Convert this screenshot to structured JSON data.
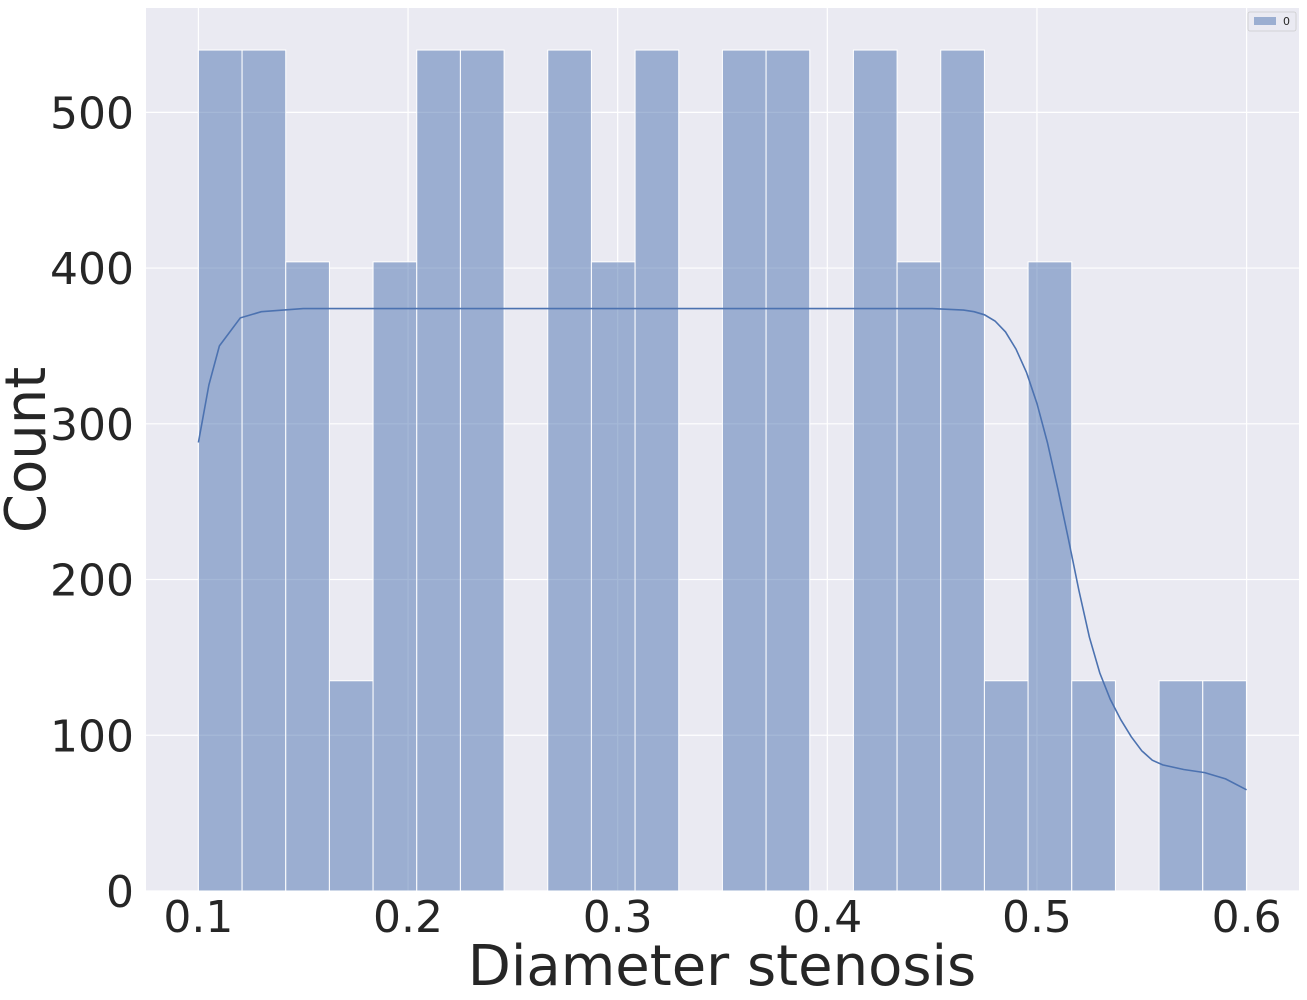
{
  "chart_data": {
    "type": "bar",
    "subtype": "histogram_with_kde",
    "xlabel": "Diameter stenosis",
    "ylabel": "Count",
    "xlim": [
      0.075,
      0.625
    ],
    "ylim": [
      0,
      567
    ],
    "xticks": [
      0.1,
      0.2,
      0.3,
      0.4,
      0.5,
      0.6
    ],
    "xtick_labels": [
      "0.1",
      "0.2",
      "0.3",
      "0.4",
      "0.5",
      "0.6"
    ],
    "yticks": [
      0,
      100,
      200,
      300,
      400,
      500
    ],
    "ytick_labels": [
      "0",
      "100",
      "200",
      "300",
      "400",
      "500"
    ],
    "grid": true,
    "legend": {
      "position": "top-right",
      "entries": [
        "0"
      ]
    },
    "bins": {
      "start": 0.1,
      "width": 0.02083,
      "counts": [
        540,
        540,
        404,
        135,
        404,
        540,
        540,
        0,
        540,
        404,
        540,
        0,
        540,
        540,
        0,
        540,
        404,
        540,
        135,
        404,
        135,
        0,
        135,
        135
      ]
    },
    "kde": {
      "x": [
        0.1,
        0.105,
        0.11,
        0.12,
        0.13,
        0.15,
        0.2,
        0.3,
        0.4,
        0.45,
        0.465,
        0.47,
        0.475,
        0.48,
        0.485,
        0.49,
        0.495,
        0.5,
        0.505,
        0.51,
        0.515,
        0.52,
        0.525,
        0.53,
        0.535,
        0.54,
        0.545,
        0.55,
        0.555,
        0.56,
        0.57,
        0.58,
        0.59,
        0.6
      ],
      "y": [
        288,
        325,
        350,
        368,
        372,
        374,
        374,
        374,
        374,
        374,
        373,
        372,
        370,
        366,
        359,
        348,
        333,
        313,
        288,
        258,
        226,
        193,
        163,
        140,
        123,
        110,
        99,
        90,
        84,
        81,
        78,
        76,
        72,
        65
      ]
    },
    "colors": {
      "background": "#eaeaf2",
      "bar_fill": "#4c72b0",
      "bar_opacity": 0.5,
      "line": "#4c72b0",
      "grid": "#ffffff"
    }
  }
}
